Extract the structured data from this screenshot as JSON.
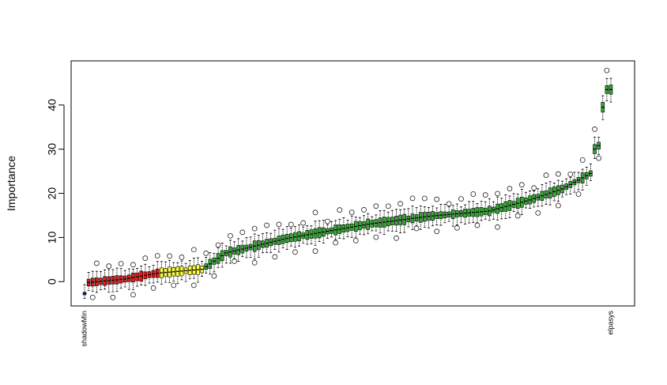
{
  "chart_data": {
    "type": "box",
    "title": "",
    "xlabel": "",
    "ylabel": "Importance",
    "ylim": [
      -5.5,
      50
    ],
    "yticks": [
      0,
      10,
      20,
      30,
      40
    ],
    "grid": false,
    "colors": {
      "shadow": "#1c5fd6",
      "rejected": "#e41a1c",
      "tentative": "#ffff33",
      "confirmed": "#33aa33",
      "axis": "#000000"
    },
    "visible_category_labels": [
      "shadowMin",
      "elpasys",
      "Importance"
    ],
    "n_features": 131,
    "feature_status": {
      "shadow_min_index": 0,
      "rejected_range": [
        1,
        18
      ],
      "tentative_range": [
        19,
        29
      ],
      "confirmed_range": [
        30,
        130
      ]
    },
    "median_curve": {
      "index": [
        0,
        1,
        10,
        18,
        19,
        29,
        35,
        50,
        70,
        85,
        100,
        110,
        118,
        122,
        125,
        126,
        127,
        128,
        129,
        130
      ],
      "median": [
        -2.7,
        -0.2,
        0.6,
        1.9,
        2.0,
        2.8,
        6.5,
        9.8,
        13.0,
        14.8,
        16.0,
        18.5,
        21.0,
        23.0,
        24.5,
        30.0,
        30.8,
        39.5,
        43.5,
        43.5
      ]
    }
  }
}
